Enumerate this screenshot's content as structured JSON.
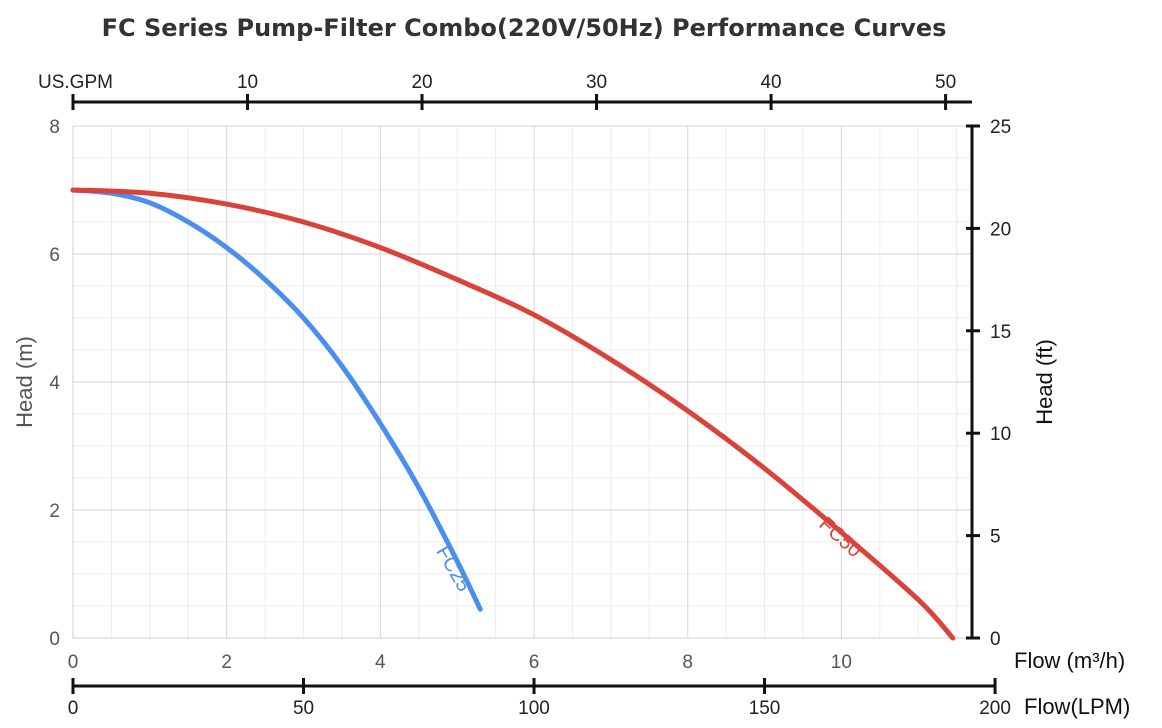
{
  "chart_data": {
    "type": "line",
    "title": "FC Series Pump-Filter Combo(220V/50Hz) Performance Curves",
    "x": {
      "label": "Flow (m³/h)",
      "range": [
        0,
        11.7
      ],
      "ticks": [
        0,
        2,
        4,
        6,
        8,
        10
      ]
    },
    "x_top": {
      "label": "US.GPM",
      "ticks": [
        10,
        20,
        30,
        40,
        50
      ]
    },
    "x_bottom2": {
      "label": "Flow(LPM)",
      "ticks": [
        0,
        50,
        100,
        150,
        200
      ]
    },
    "y_left": {
      "label": "Head (m)",
      "range": [
        0,
        8
      ],
      "ticks": [
        0,
        2,
        4,
        6,
        8
      ]
    },
    "y_right": {
      "label": "Head (ft)",
      "range": [
        0,
        25
      ],
      "ticks": [
        0,
        5,
        10,
        15,
        20,
        25
      ]
    },
    "grid": true,
    "series": [
      {
        "name": "FC25",
        "color": "#4a8ef0",
        "x": [
          0,
          0.5,
          1,
          1.5,
          2,
          2.5,
          3,
          3.5,
          4,
          4.5,
          5,
          5.3
        ],
        "y": [
          7.0,
          6.95,
          6.8,
          6.5,
          6.1,
          5.6,
          5.0,
          4.25,
          3.35,
          2.35,
          1.2,
          0.45
        ]
      },
      {
        "name": "FC50",
        "color": "#d9433a",
        "x": [
          0,
          1,
          2,
          3,
          4,
          5,
          6,
          7,
          8,
          9,
          10,
          11,
          11.45
        ],
        "y": [
          7.0,
          6.95,
          6.78,
          6.5,
          6.1,
          5.6,
          5.05,
          4.35,
          3.55,
          2.65,
          1.65,
          0.6,
          0.0
        ]
      }
    ]
  }
}
